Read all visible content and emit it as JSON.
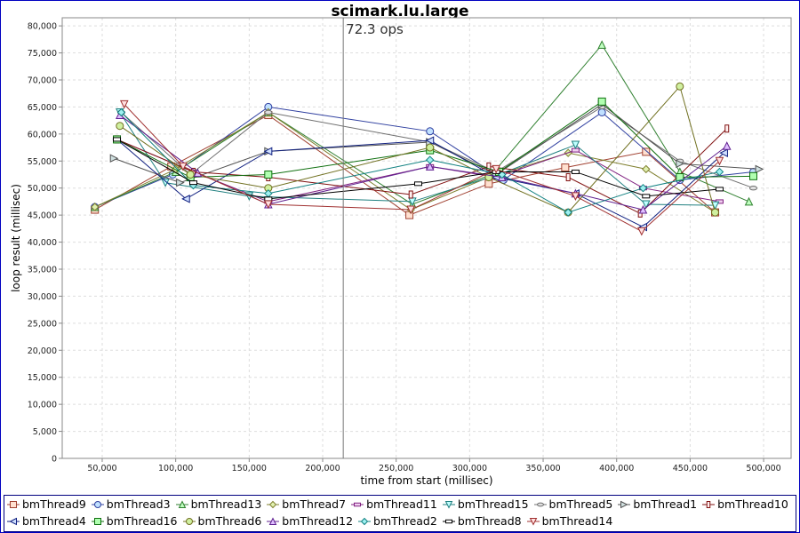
{
  "chart_data": {
    "type": "line",
    "title": "scimark.lu.large",
    "annotation": "72.3 ops",
    "annotation_x": 214000,
    "xlabel": "time from start (millisec)",
    "ylabel": "loop result (millisec)",
    "xlim": [
      22800,
      518700
    ],
    "ylim": [
      0,
      81500
    ],
    "xticks": [
      50000,
      100000,
      150000,
      200000,
      250000,
      300000,
      350000,
      400000,
      450000,
      500000
    ],
    "xtick_labels": [
      "50,000",
      "100,000",
      "150,000",
      "200,000",
      "250,000",
      "300,000",
      "350,000",
      "400,000",
      "450,000",
      "500,000"
    ],
    "yticks": [
      0,
      5000,
      10000,
      15000,
      20000,
      25000,
      30000,
      35000,
      40000,
      45000,
      50000,
      55000,
      60000,
      65000,
      70000,
      75000,
      80000
    ],
    "ytick_labels": [
      "0",
      "5,000",
      "10,000",
      "15,000",
      "20,000",
      "25,000",
      "30,000",
      "35,000",
      "40,000",
      "45,000",
      "50,000",
      "55,000",
      "60,000",
      "65,000",
      "70,000",
      "75,000",
      "80,000"
    ],
    "grid": true,
    "legend_position": "bottom",
    "series": [
      {
        "name": "bmThread9",
        "marker": "square",
        "color": "#a04030",
        "fill": "#ffe0d0",
        "x": [
          45000,
          97000,
          163000,
          259000,
          313000,
          365000,
          420000,
          467000
        ],
        "y": [
          46000,
          54000,
          63500,
          45000,
          50800,
          53800,
          56700,
          45500
        ]
      },
      {
        "name": "bmThread3",
        "marker": "circle",
        "color": "#3040a0",
        "fill": "#c0e0ff",
        "x": [
          45000,
          98000,
          163000,
          273000,
          323000,
          390000,
          443000,
          493000
        ],
        "y": [
          46500,
          52500,
          65000,
          60500,
          51500,
          64000,
          51500,
          53000
        ]
      },
      {
        "name": "bmThread13",
        "marker": "triangle-up",
        "color": "#308030",
        "fill": "#c0ffc0",
        "x": [
          45000,
          100000,
          163000,
          261000,
          315000,
          390000,
          443000,
          490000
        ],
        "y": [
          46500,
          53000,
          64000,
          47000,
          52500,
          76500,
          53000,
          47500
        ]
      },
      {
        "name": "bmThread7",
        "marker": "diamond",
        "color": "#808030",
        "fill": "#e0f0b0",
        "x": [
          45000,
          100000,
          163000,
          260000,
          313000,
          367000,
          420000,
          467000
        ],
        "y": [
          46500,
          53500,
          64000,
          46000,
          52000,
          56500,
          53500,
          45500
        ]
      },
      {
        "name": "bmThread11",
        "marker": "rect-h",
        "color": "#802080",
        "fill": "#f0d0f0",
        "x": [
          60000,
          112000,
          163000,
          273000,
          318000,
          372000,
          418000,
          470000
        ],
        "y": [
          59000,
          53000,
          47500,
          54000,
          52000,
          57000,
          50000,
          47500
        ]
      },
      {
        "name": "bmThread15",
        "marker": "triangle-down",
        "color": "#208080",
        "fill": "#c0ffff",
        "x": [
          62000,
          93000,
          150000,
          261000,
          320000,
          372000,
          420000,
          467000
        ],
        "y": [
          64000,
          51000,
          48500,
          47500,
          52500,
          58000,
          47000,
          46800
        ]
      },
      {
        "name": "bmThread5",
        "marker": "oval",
        "color": "#707070",
        "fill": "#e0e0e0",
        "x": [
          63000,
          110000,
          163000,
          273000,
          318000,
          390000,
          443000,
          493000
        ],
        "y": [
          64000,
          52500,
          64000,
          58500,
          53000,
          65000,
          55000,
          50000
        ]
      },
      {
        "name": "bmThread1",
        "marker": "triangle-right",
        "color": "#505050",
        "fill": "#d0e0e0",
        "x": [
          58000,
          103000,
          163000,
          273000,
          318000,
          390000,
          443000,
          497000
        ],
        "y": [
          55500,
          51000,
          56800,
          58500,
          52500,
          65500,
          54500,
          53500
        ]
      },
      {
        "name": "bmThread10",
        "marker": "rect-v",
        "color": "#801010",
        "fill": "#fff0f0",
        "x": [
          60000,
          112000,
          163000,
          260000,
          313000,
          367000,
          416000,
          475000
        ],
        "y": [
          59000,
          53000,
          52000,
          48800,
          54000,
          52000,
          45300,
          61000
        ]
      },
      {
        "name": "bmThread4",
        "marker": "triangle-left",
        "color": "#102080",
        "fill": "#d0e0ff",
        "x": [
          60000,
          107000,
          163000,
          273000,
          318000,
          372000,
          418000,
          473000
        ],
        "y": [
          59000,
          48000,
          56800,
          58800,
          52000,
          49000,
          42800,
          56500
        ]
      },
      {
        "name": "bmThread16",
        "marker": "square",
        "color": "#107010",
        "fill": "#b0ffb0",
        "x": [
          60000,
          110000,
          163000,
          273000,
          320000,
          390000,
          443000,
          493000
        ],
        "y": [
          59000,
          52000,
          52500,
          57000,
          53000,
          66000,
          52000,
          52200
        ]
      },
      {
        "name": "bmThread6",
        "marker": "circle",
        "color": "#707020",
        "fill": "#d0f0a0",
        "x": [
          62000,
          110000,
          163000,
          273000,
          313000,
          367000,
          443000,
          467000
        ],
        "y": [
          61500,
          52500,
          50000,
          57500,
          52000,
          45500,
          68800,
          45500
        ]
      },
      {
        "name": "bmThread12",
        "marker": "triangle-up",
        "color": "#602090",
        "fill": "#e0c0ff",
        "x": [
          62000,
          115000,
          163000,
          273000,
          322000,
          372000,
          418000,
          475000
        ],
        "y": [
          63500,
          52800,
          47000,
          54000,
          52000,
          49000,
          46000,
          57800
        ]
      },
      {
        "name": "bmThread2",
        "marker": "diamond",
        "color": "#108080",
        "fill": "#a0f0f0",
        "x": [
          63000,
          112000,
          163000,
          273000,
          322000,
          367000,
          418000,
          470000
        ],
        "y": [
          64000,
          50500,
          49000,
          55200,
          52500,
          45500,
          50000,
          53000
        ]
      },
      {
        "name": "bmThread8",
        "marker": "rect-h",
        "color": "#000000",
        "fill": "#ffffff",
        "x": [
          60000,
          112000,
          163000,
          265000,
          318000,
          372000,
          420000,
          470000
        ],
        "y": [
          59000,
          51000,
          48000,
          50800,
          53000,
          53000,
          48500,
          49800
        ]
      },
      {
        "name": "bmThread14",
        "marker": "triangle-down",
        "color": "#a03030",
        "fill": "#ffe0e0",
        "x": [
          65000,
          105000,
          163000,
          260000,
          318000,
          372000,
          417000,
          470000
        ],
        "y": [
          65500,
          54000,
          47000,
          46000,
          53500,
          48500,
          42000,
          55000
        ]
      }
    ]
  }
}
